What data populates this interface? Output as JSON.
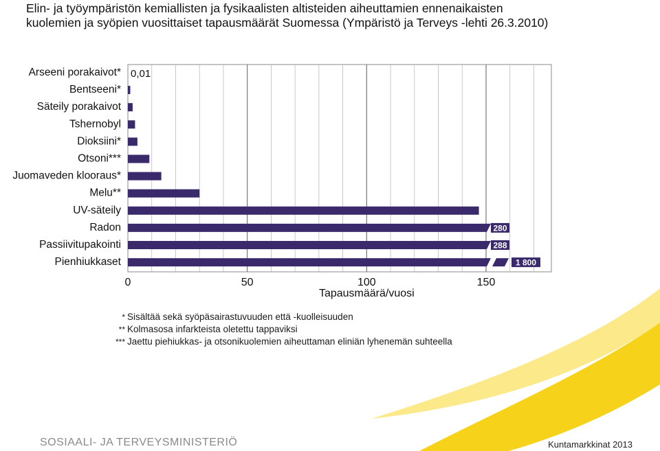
{
  "title": {
    "line1": "Elin- ja työympäristön kemiallisten ja fysikaalisten altisteiden aiheuttamien ennenaikaisten",
    "line2": "kuolemien ja syöpien vuosittaiset tapausmäärät Suomessa (Ympäristö ja Terveys -lehti 26.3.2010)"
  },
  "chart_data": {
    "type": "bar",
    "orientation": "horizontal",
    "categories": [
      "Arseeni porakaivot*",
      "Bentseeni*",
      "Säteily porakaivot",
      "Tshernobyl",
      "Dioksiini*",
      "Otsoni***",
      "Juomaveden klooraus*",
      "Melu**",
      "UV-säteily",
      "Radon",
      "Passiivitupakointi",
      "Pienhiukkaset"
    ],
    "values": [
      0.01,
      1,
      2,
      3,
      4,
      9,
      14,
      30,
      147,
      280,
      288,
      1800
    ],
    "value_labels": [
      "0,01",
      "",
      "",
      "",
      "",
      "",
      "",
      "",
      "",
      "280",
      "288",
      "1 800"
    ],
    "xlabel": "Tapausmäärä/vuosi",
    "xlim": [
      0,
      180
    ],
    "xticks": [
      0,
      50,
      100,
      150
    ],
    "xtick_labels": [
      "0",
      "50",
      "100",
      "150"
    ],
    "axis_break_note": "bars for Radon, Passiivitupakointi and Pienhiukkaset are truncated with a break",
    "bar_color": "#3b2a6b",
    "grid": true
  },
  "footnotes": [
    {
      "mark": "*",
      "text": "Sisältää sekä syöpäsairastuvuuden että -kuolleisuuden"
    },
    {
      "mark": "**",
      "text": "Kolmasosa infarkteista oletettu tappaviksi"
    },
    {
      "mark": "***",
      "text": "Jaettu piehiukkas- ja otsonikuolemien aiheuttaman eliniän lyhenemän suhteella"
    }
  ],
  "footer": {
    "org": "SOSIAALI- JA TERVEYSMINISTERIÖ",
    "source": "Kuntamarkkinat 2013"
  },
  "colors": {
    "bar": "#3b2a6b",
    "swoosh": "#f6d31a",
    "swoosh_light": "#fbe98a"
  }
}
